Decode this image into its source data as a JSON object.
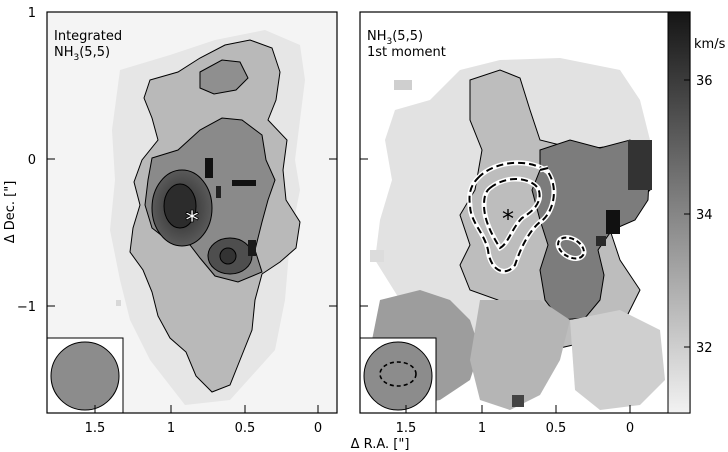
{
  "panels": [
    {
      "id": "left",
      "label_line1": "Integrated",
      "label_species": "NH",
      "label_subscript": "3",
      "label_transition": "(5,5)",
      "beam_icon": "filled-gray-circle"
    },
    {
      "id": "right",
      "label_species": "NH",
      "label_subscript": "3",
      "label_transition": "(5,5)",
      "label_line2": "1st moment",
      "beam_icon": "filled-gray-circle-dashed-ellipse"
    }
  ],
  "axes": {
    "xlabel": "Δ R.A. [\"]",
    "ylabel": "Δ Dec. [\"]",
    "x_ticks_left": [
      "1.5",
      "1",
      "0.5",
      "0"
    ],
    "x_ticks_right": [
      "1.5",
      "1",
      "0.5",
      "0"
    ],
    "y_ticks": [
      "1",
      "0",
      "−1"
    ]
  },
  "colorbar": {
    "unit": "km/s",
    "ticks": [
      "36",
      "34",
      "32"
    ],
    "gradient_dark": "#1a1a1a",
    "gradient_light": "#f2f2f2"
  },
  "markers": {
    "left_star": "asterisk-white",
    "right_star": "asterisk-black"
  }
}
